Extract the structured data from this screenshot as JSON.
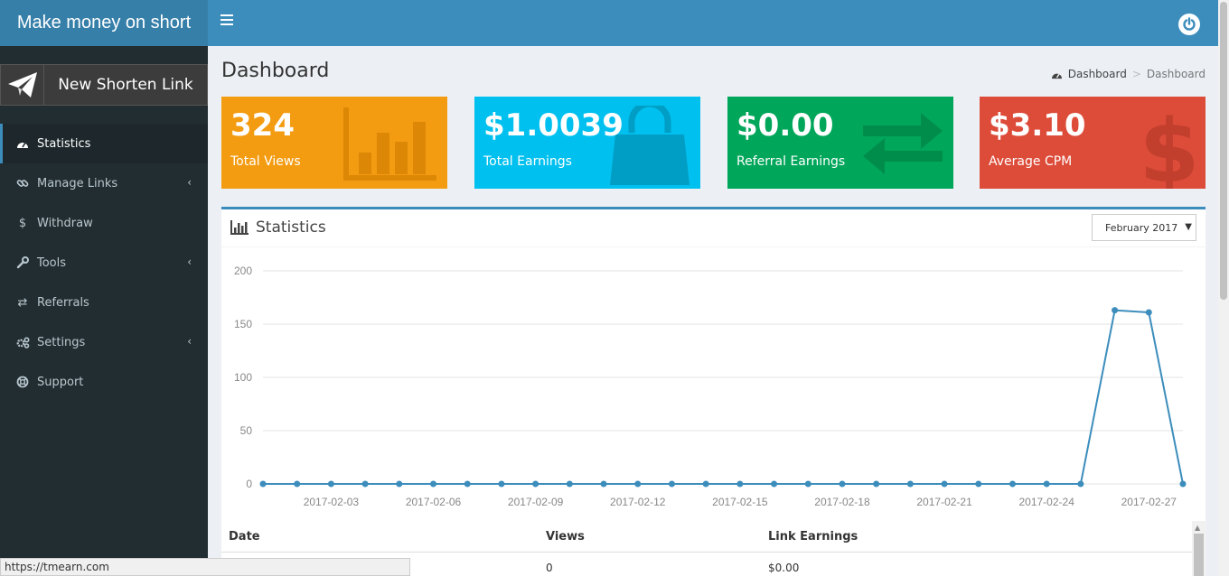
{
  "header": {
    "logo": "Make money on short"
  },
  "sidebar": {
    "new_link_label": "New Shorten Link",
    "items": [
      {
        "label": "Statistics",
        "icon": "dashboard-icon",
        "active": true,
        "submenu": false
      },
      {
        "label": "Manage Links",
        "icon": "link-icon",
        "active": false,
        "submenu": true
      },
      {
        "label": "Withdraw",
        "icon": "dollar-icon",
        "active": false,
        "submenu": false
      },
      {
        "label": "Tools",
        "icon": "wrench-icon",
        "active": false,
        "submenu": true
      },
      {
        "label": "Referrals",
        "icon": "exchange-icon",
        "active": false,
        "submenu": false
      },
      {
        "label": "Settings",
        "icon": "cogs-icon",
        "active": false,
        "submenu": true
      },
      {
        "label": "Support",
        "icon": "life-ring-icon",
        "active": false,
        "submenu": false
      }
    ]
  },
  "page": {
    "title": "Dashboard",
    "breadcrumb": {
      "home": "Dashboard",
      "current": "Dashboard"
    }
  },
  "boxes": [
    {
      "value": "324",
      "label": "Total Views",
      "color": "#f39c12",
      "icon": "bar-chart-icon"
    },
    {
      "value": "$1.0039",
      "label": "Total Earnings",
      "color": "#00c0ef",
      "icon": "shopping-bag-icon"
    },
    {
      "value": "$0.00",
      "label": "Referral Earnings",
      "color": "#00a65a",
      "icon": "exchange-arrows-icon"
    },
    {
      "value": "$3.10",
      "label": "Average CPM",
      "color": "#dd4b39",
      "icon": "dollar-sign-icon"
    }
  ],
  "statistics": {
    "title": "Statistics",
    "month": "February 2017",
    "table": {
      "headers": [
        "Date",
        "Views",
        "Link Earnings"
      ],
      "rows": [
        [
          "",
          "0",
          "$0.00"
        ]
      ]
    }
  },
  "chart_data": {
    "type": "line",
    "x": [
      "2017-02-01",
      "2017-02-02",
      "2017-02-03",
      "2017-02-04",
      "2017-02-05",
      "2017-02-06",
      "2017-02-07",
      "2017-02-08",
      "2017-02-09",
      "2017-02-10",
      "2017-02-11",
      "2017-02-12",
      "2017-02-13",
      "2017-02-14",
      "2017-02-15",
      "2017-02-16",
      "2017-02-17",
      "2017-02-18",
      "2017-02-19",
      "2017-02-20",
      "2017-02-21",
      "2017-02-22",
      "2017-02-23",
      "2017-02-24",
      "2017-02-25",
      "2017-02-26",
      "2017-02-27",
      "2017-02-28"
    ],
    "values": [
      0,
      0,
      0,
      0,
      0,
      0,
      0,
      0,
      0,
      0,
      0,
      0,
      0,
      0,
      0,
      0,
      0,
      0,
      0,
      0,
      0,
      0,
      0,
      0,
      0,
      163,
      161,
      0
    ],
    "xticks": [
      "2017-02-03",
      "2017-02-06",
      "2017-02-09",
      "2017-02-12",
      "2017-02-15",
      "2017-02-18",
      "2017-02-21",
      "2017-02-24",
      "2017-02-27"
    ],
    "yticks": [
      0,
      50,
      100,
      150,
      200
    ],
    "ylim": [
      0,
      200
    ],
    "grid": true,
    "line_color": "#3c8dbc"
  },
  "status_bar": {
    "url": "https://tmearn.com"
  }
}
